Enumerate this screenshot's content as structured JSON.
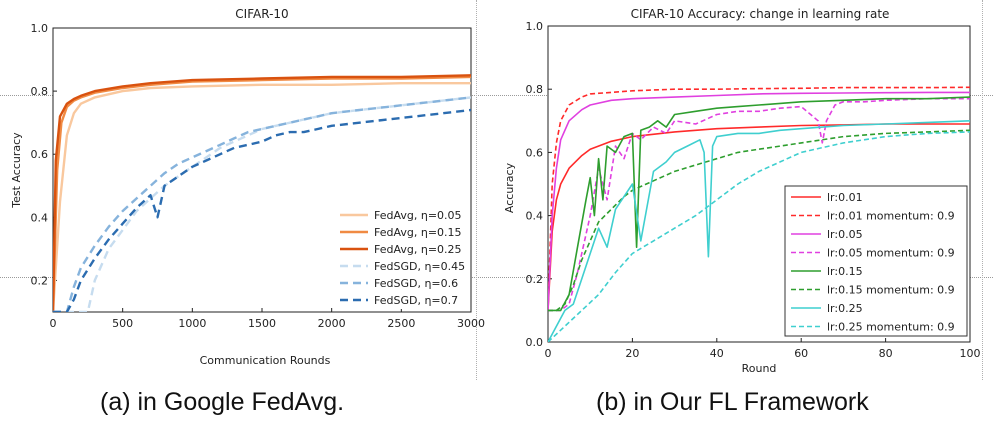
{
  "captions": {
    "left": "(a) in Google FedAvg.",
    "right": "(b) in Our FL Framework"
  },
  "chart_data": [
    {
      "type": "line",
      "title": "CIFAR-10",
      "xlabel": "Communication Rounds",
      "ylabel": "Test Accuracy",
      "xlim": [
        0,
        3000
      ],
      "ylim": [
        0.1,
        1.0
      ],
      "xticks": [
        "0",
        "500",
        "1000",
        "1500",
        "2000",
        "2500",
        "3000"
      ],
      "yticks": [
        "0.2",
        "0.4",
        "0.6",
        "0.8",
        "1.0"
      ],
      "legend_position": "lower-right",
      "series": [
        {
          "name": "FedAvg, η=0.05",
          "color": "#f9c89e",
          "dash": "solid",
          "x": [
            0,
            50,
            100,
            150,
            200,
            300,
            500,
            700,
            1000,
            1500,
            2000,
            2500,
            3000
          ],
          "y": [
            0.1,
            0.45,
            0.66,
            0.73,
            0.76,
            0.78,
            0.8,
            0.81,
            0.815,
            0.82,
            0.82,
            0.825,
            0.825
          ]
        },
        {
          "name": "FedAvg, η=0.15",
          "color": "#f08a43",
          "dash": "solid",
          "x": [
            0,
            30,
            60,
            100,
            150,
            200,
            300,
            500,
            700,
            1000,
            1500,
            2000,
            2500,
            3000
          ],
          "y": [
            0.1,
            0.55,
            0.7,
            0.75,
            0.77,
            0.78,
            0.795,
            0.81,
            0.82,
            0.83,
            0.835,
            0.84,
            0.84,
            0.845
          ]
        },
        {
          "name": "FedAvg, η=0.25",
          "color": "#d9520f",
          "dash": "solid",
          "x": [
            0,
            20,
            50,
            100,
            150,
            200,
            300,
            500,
            700,
            1000,
            1500,
            2000,
            2500,
            3000
          ],
          "y": [
            0.1,
            0.58,
            0.72,
            0.76,
            0.775,
            0.785,
            0.8,
            0.815,
            0.825,
            0.835,
            0.84,
            0.845,
            0.845,
            0.85
          ]
        },
        {
          "name": "FedSGD, η=0.45",
          "color": "#c6dcef",
          "dash": "dashed",
          "x": [
            0,
            150,
            250,
            300,
            400,
            500,
            600,
            700,
            800,
            900,
            1000,
            1100,
            1200,
            1300,
            1400,
            1500,
            1600,
            1700,
            1800,
            1900,
            2000,
            2200,
            2400,
            2600,
            2800,
            3000
          ],
          "y": [
            0.1,
            0.1,
            0.1,
            0.2,
            0.3,
            0.36,
            0.42,
            0.46,
            0.5,
            0.53,
            0.56,
            0.59,
            0.62,
            0.64,
            0.66,
            0.68,
            0.69,
            0.7,
            0.71,
            0.72,
            0.73,
            0.74,
            0.75,
            0.76,
            0.77,
            0.78
          ]
        },
        {
          "name": "FedSGD, η=0.6",
          "color": "#86b3dc",
          "dash": "dashed",
          "x": [
            0,
            100,
            150,
            200,
            300,
            400,
            500,
            600,
            700,
            800,
            900,
            1000,
            1100,
            1200,
            1300,
            1400,
            1500,
            1600,
            1700,
            1800,
            1900,
            2000,
            2200,
            2400,
            2600,
            2800,
            3000
          ],
          "y": [
            0.1,
            0.1,
            0.18,
            0.24,
            0.31,
            0.37,
            0.42,
            0.46,
            0.5,
            0.54,
            0.57,
            0.59,
            0.61,
            0.63,
            0.65,
            0.67,
            0.68,
            0.69,
            0.7,
            0.71,
            0.72,
            0.73,
            0.74,
            0.75,
            0.76,
            0.77,
            0.78
          ]
        },
        {
          "name": "FedSGD, η=0.7",
          "color": "#2b6cb0",
          "dash": "dashed",
          "x": [
            0,
            100,
            150,
            200,
            300,
            400,
            500,
            600,
            700,
            750,
            800,
            900,
            1000,
            1100,
            1200,
            1300,
            1400,
            1500,
            1600,
            1700,
            1800,
            1900,
            2000,
            2200,
            2400,
            2600,
            2800,
            3000
          ],
          "y": [
            0.1,
            0.1,
            0.14,
            0.2,
            0.27,
            0.33,
            0.38,
            0.43,
            0.47,
            0.4,
            0.5,
            0.53,
            0.56,
            0.58,
            0.6,
            0.62,
            0.63,
            0.64,
            0.66,
            0.67,
            0.67,
            0.68,
            0.69,
            0.7,
            0.71,
            0.72,
            0.73,
            0.74
          ]
        }
      ]
    },
    {
      "type": "line",
      "title": "CIFAR-10 Accuracy: change in learning rate",
      "xlabel": "Round",
      "ylabel": "Accuracy",
      "xlim": [
        0,
        100
      ],
      "ylim": [
        0.0,
        1.0
      ],
      "xticks": [
        "0",
        "20",
        "40",
        "60",
        "80",
        "100"
      ],
      "yticks": [
        "0.0",
        "0.2",
        "0.4",
        "0.6",
        "0.8",
        "1.0"
      ],
      "legend_position": "lower-right",
      "series": [
        {
          "name": "lr:0.01",
          "color": "#ff2a2a",
          "dash": "solid",
          "x": [
            0,
            1,
            2,
            3,
            5,
            8,
            10,
            15,
            20,
            30,
            40,
            50,
            60,
            70,
            80,
            90,
            100
          ],
          "y": [
            0.1,
            0.35,
            0.45,
            0.5,
            0.55,
            0.59,
            0.61,
            0.635,
            0.65,
            0.665,
            0.675,
            0.68,
            0.685,
            0.687,
            0.69,
            0.69,
            0.69
          ]
        },
        {
          "name": "lr:0.01 momentum: 0.9",
          "color": "#ff2a2a",
          "dash": "dashed",
          "x": [
            0,
            1,
            2,
            3,
            5,
            8,
            10,
            15,
            20,
            30,
            40,
            50,
            60,
            70,
            80,
            90,
            100
          ],
          "y": [
            0.1,
            0.5,
            0.63,
            0.7,
            0.75,
            0.775,
            0.785,
            0.79,
            0.795,
            0.8,
            0.8,
            0.802,
            0.803,
            0.805,
            0.805,
            0.805,
            0.806
          ]
        },
        {
          "name": "lr:0.05",
          "color": "#e040e0",
          "dash": "solid",
          "x": [
            0,
            1,
            2,
            3,
            5,
            8,
            10,
            15,
            20,
            30,
            40,
            50,
            60,
            70,
            80,
            90,
            100
          ],
          "y": [
            0.1,
            0.4,
            0.55,
            0.64,
            0.7,
            0.735,
            0.75,
            0.765,
            0.77,
            0.775,
            0.78,
            0.785,
            0.787,
            0.788,
            0.789,
            0.79,
            0.79
          ]
        },
        {
          "name": "lr:0.05 momentum: 0.9",
          "color": "#e040e0",
          "dash": "dashed",
          "x": [
            0,
            3,
            5,
            7,
            10,
            12,
            14,
            16,
            18,
            20,
            22,
            25,
            28,
            30,
            35,
            40,
            45,
            50,
            55,
            60,
            64,
            65,
            66,
            68,
            70,
            75,
            80,
            90,
            100
          ],
          "y": [
            0.1,
            0.1,
            0.12,
            0.22,
            0.4,
            0.55,
            0.45,
            0.62,
            0.58,
            0.66,
            0.64,
            0.68,
            0.66,
            0.7,
            0.69,
            0.72,
            0.73,
            0.73,
            0.74,
            0.745,
            0.7,
            0.63,
            0.7,
            0.75,
            0.76,
            0.76,
            0.765,
            0.77,
            0.77
          ]
        },
        {
          "name": "lr:0.15",
          "color": "#2e9e2e",
          "dash": "solid",
          "x": [
            0,
            3,
            5,
            7,
            9,
            10,
            11,
            12,
            13,
            14,
            16,
            18,
            20,
            21,
            22,
            24,
            26,
            28,
            30,
            35,
            40,
            45,
            50,
            55,
            60,
            70,
            80,
            90,
            100
          ],
          "y": [
            0.1,
            0.1,
            0.15,
            0.3,
            0.45,
            0.52,
            0.4,
            0.58,
            0.45,
            0.62,
            0.6,
            0.65,
            0.66,
            0.3,
            0.67,
            0.68,
            0.7,
            0.68,
            0.72,
            0.73,
            0.74,
            0.745,
            0.75,
            0.755,
            0.76,
            0.765,
            0.77,
            0.77,
            0.775
          ]
        },
        {
          "name": "lr:0.15 momentum: 0.9",
          "color": "#2e9e2e",
          "dash": "dashed",
          "x": [
            0,
            2,
            4,
            6,
            8,
            10,
            12,
            15,
            18,
            20,
            25,
            30,
            35,
            40,
            45,
            50,
            55,
            60,
            70,
            80,
            90,
            100
          ],
          "y": [
            0.1,
            0.1,
            0.12,
            0.18,
            0.26,
            0.32,
            0.38,
            0.42,
            0.46,
            0.48,
            0.51,
            0.54,
            0.56,
            0.58,
            0.6,
            0.61,
            0.62,
            0.63,
            0.65,
            0.66,
            0.665,
            0.67
          ]
        },
        {
          "name": "lr:0.25",
          "color": "#3fcfcf",
          "dash": "solid",
          "x": [
            0,
            4,
            6,
            8,
            10,
            12,
            14,
            16,
            18,
            20,
            22,
            25,
            28,
            30,
            33,
            36,
            37,
            38,
            39,
            40,
            45,
            50,
            55,
            60,
            65,
            70,
            80,
            90,
            100
          ],
          "y": [
            0.0,
            0.1,
            0.12,
            0.2,
            0.28,
            0.36,
            0.3,
            0.42,
            0.46,
            0.5,
            0.32,
            0.54,
            0.57,
            0.6,
            0.62,
            0.64,
            0.6,
            0.27,
            0.62,
            0.65,
            0.66,
            0.66,
            0.67,
            0.675,
            0.68,
            0.685,
            0.69,
            0.695,
            0.7
          ]
        },
        {
          "name": "lr:0.25 momentum: 0.9",
          "color": "#3fcfcf",
          "dash": "dashed",
          "x": [
            0,
            4,
            8,
            12,
            16,
            20,
            25,
            30,
            35,
            40,
            45,
            50,
            55,
            60,
            70,
            80,
            90,
            100
          ],
          "y": [
            0.0,
            0.05,
            0.1,
            0.15,
            0.22,
            0.28,
            0.32,
            0.36,
            0.4,
            0.45,
            0.5,
            0.54,
            0.57,
            0.6,
            0.63,
            0.65,
            0.66,
            0.665
          ]
        }
      ]
    }
  ]
}
